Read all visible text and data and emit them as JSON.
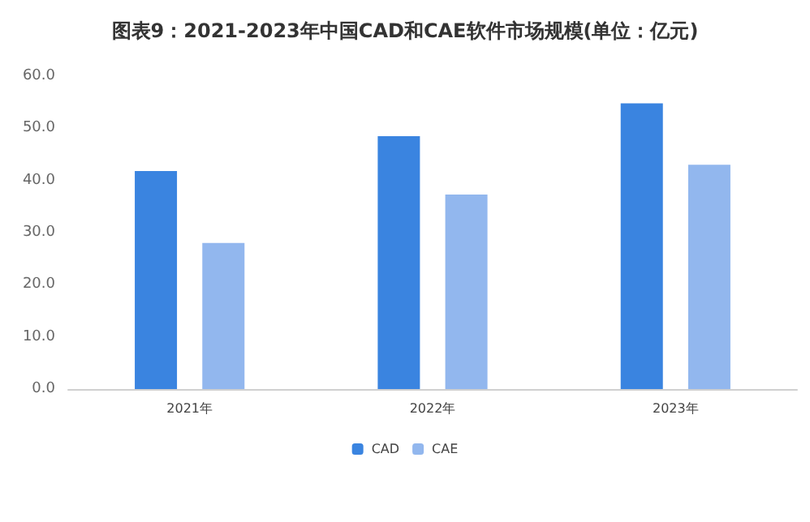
{
  "chart_data": {
    "type": "bar",
    "title": "图表9：2021-2023年中国CAD和CAE软件市场规模(单位：亿元)",
    "categories": [
      "2021年",
      "2022年",
      "2023年"
    ],
    "series": [
      {
        "name": "CAD",
        "color": "#3a84e0",
        "values": [
          41.8,
          48.5,
          54.8
        ]
      },
      {
        "name": "CAE",
        "color": "#92b7ee",
        "values": [
          28.0,
          37.3,
          43.0
        ]
      }
    ],
    "ylim": [
      0,
      60
    ],
    "yticks": [
      {
        "value": 0,
        "label": "0.0"
      },
      {
        "value": 10,
        "label": "10.0"
      },
      {
        "value": 20,
        "label": "20.0"
      },
      {
        "value": 30,
        "label": "30.0"
      },
      {
        "value": 40,
        "label": "40.0"
      },
      {
        "value": 50,
        "label": "50.0"
      },
      {
        "value": 60,
        "label": "60.0"
      }
    ],
    "grid": false,
    "legend": "bottom"
  }
}
